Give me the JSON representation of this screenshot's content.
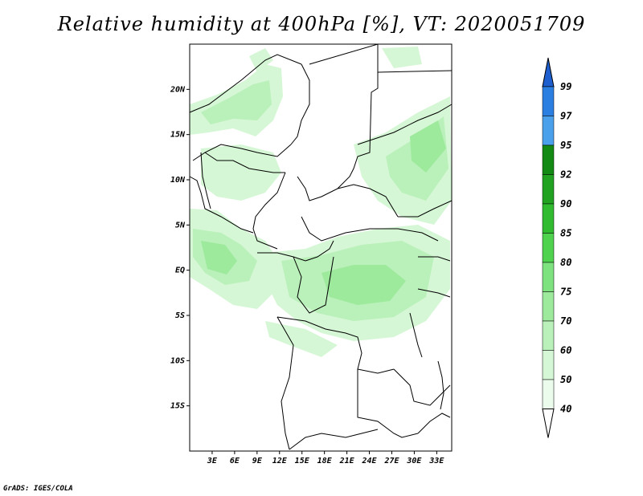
{
  "title": "Relative humidity at 400hPa [%], VT: 2020051709",
  "credit": "GrADS: IGES/COLA",
  "map": {
    "projection": "lat-lon",
    "lon_range": [
      0,
      35
    ],
    "lat_range": [
      -20,
      25
    ],
    "lat_labels": [
      "20N",
      "15N",
      "10N",
      "5N",
      "EQ",
      "5S",
      "10S",
      "15S"
    ],
    "lat_values": [
      20,
      15,
      10,
      5,
      0,
      -5,
      -10,
      -15
    ],
    "lon_labels": [
      "3E",
      "6E",
      "9E",
      "12E",
      "15E",
      "18E",
      "21E",
      "24E",
      "27E",
      "30E",
      "33E"
    ],
    "lon_values": [
      3,
      6,
      9,
      12,
      15,
      18,
      21,
      24,
      27,
      30,
      33
    ],
    "boundary_color": "#000000",
    "shading": "light-to-medium green humidity patches over West/Central Africa"
  },
  "colorbar": {
    "levels": [
      "99",
      "97",
      "95",
      "92",
      "90",
      "85",
      "80",
      "75",
      "70",
      "60",
      "50",
      "40"
    ],
    "colors": [
      "#1e5fcf",
      "#2b7fe0",
      "#4aa0ea",
      "#138a13",
      "#21a321",
      "#31bb31",
      "#4fd34f",
      "#7ee27e",
      "#9dea9d",
      "#baf0ba",
      "#d6f7d6",
      "#ecfcec"
    ],
    "top_triangle_color": "#1e5fcf",
    "bottom_triangle_color": "#ffffff"
  }
}
